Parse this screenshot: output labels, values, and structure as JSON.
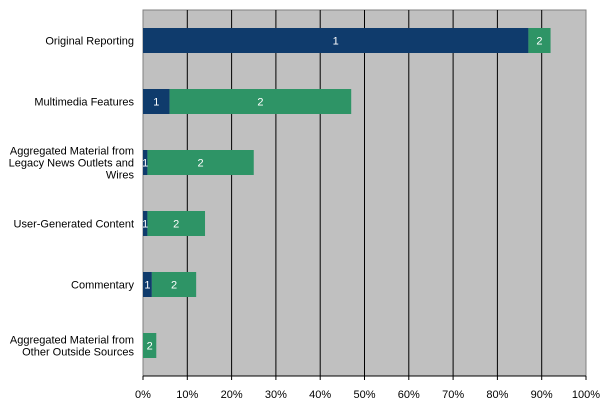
{
  "chart_data": {
    "type": "bar",
    "orientation": "horizontal",
    "stacked": true,
    "categories": [
      [
        "Original Reporting"
      ],
      [
        "Multimedia Features"
      ],
      [
        "Aggregated Material from",
        "Legacy News Outlets and",
        "Wires"
      ],
      [
        "User-Generated Content"
      ],
      [
        "Commentary"
      ],
      [
        "Aggregated Material from",
        "Other Outside Sources"
      ]
    ],
    "series": [
      {
        "label": "1",
        "color": "#0f3b6c",
        "values": [
          87,
          6,
          1,
          1,
          2,
          0
        ]
      },
      {
        "label": "2",
        "color": "#2e9466",
        "values": [
          5,
          41,
          24,
          13,
          10,
          3
        ]
      }
    ],
    "data_labels": [
      [
        "1",
        "2"
      ],
      [
        "1",
        "2"
      ],
      [
        "1",
        "2"
      ],
      [
        "1",
        "2"
      ],
      [
        "1",
        "2"
      ],
      [
        "",
        "2"
      ]
    ],
    "xlim": [
      0,
      100
    ],
    "x_ticks": [
      "0%",
      "10%",
      "20%",
      "30%",
      "40%",
      "50%",
      "60%",
      "70%",
      "80%",
      "90%",
      "100%"
    ],
    "grid": "vertical",
    "plot_background": "#c0c0c0",
    "legend": "none",
    "title": "",
    "xlabel": "",
    "ylabel": ""
  }
}
